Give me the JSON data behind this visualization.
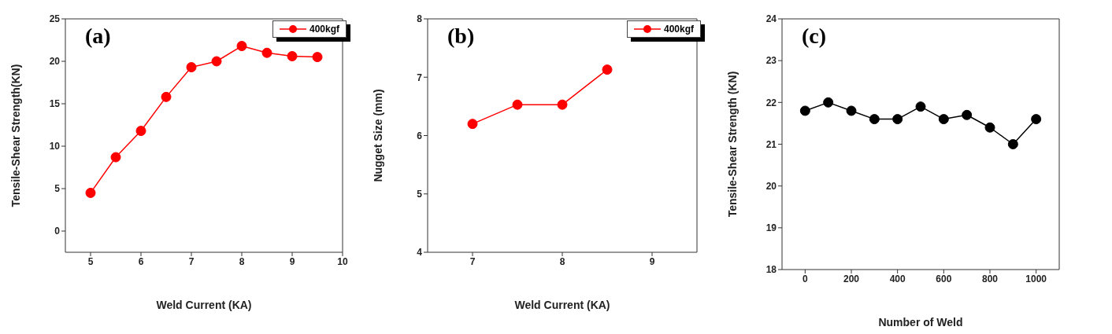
{
  "chart_data": [
    {
      "type": "line",
      "xlabel": "Weld Current (KA)",
      "ylabel": "Tensile-Shear Strength(KN)",
      "annotations": [
        "(a)"
      ],
      "x": [
        5,
        5.5,
        6,
        6.5,
        7,
        7.5,
        8,
        8.5,
        9,
        9.5
      ],
      "xlim": [
        4.5,
        10
      ],
      "xticks": [
        5,
        6,
        7,
        8,
        9,
        10
      ],
      "ylim": [
        -2.5,
        25
      ],
      "yticks": [
        0,
        5,
        10,
        15,
        20,
        25
      ],
      "marker": "circle",
      "legend": "top right",
      "grid": false,
      "series": [
        {
          "name": "400kgf",
          "color": "#ff0000",
          "values": [
            4.5,
            8.7,
            11.8,
            15.8,
            19.3,
            20.0,
            21.8,
            21.0,
            20.6,
            20.5
          ]
        }
      ]
    },
    {
      "type": "line",
      "xlabel": "Weld Current (KA)",
      "ylabel": "Nugget Size (mm)",
      "annotations": [
        "(b)"
      ],
      "x": [
        7,
        7.5,
        8,
        8.5
      ],
      "xlim": [
        6.5,
        9.5
      ],
      "xticks": [
        7,
        8,
        9
      ],
      "ylim": [
        4,
        8
      ],
      "yticks": [
        4,
        5,
        6,
        7,
        8
      ],
      "marker": "circle",
      "legend": "top right",
      "grid": false,
      "series": [
        {
          "name": "400kgf",
          "color": "#ff0000",
          "values": [
            6.2,
            6.53,
            6.53,
            7.13
          ]
        }
      ]
    },
    {
      "type": "line",
      "xlabel": "Number of Weld",
      "ylabel": "Tensile-Shear Strength (KN)",
      "annotations": [
        "(c)"
      ],
      "x": [
        0,
        100,
        200,
        300,
        400,
        500,
        600,
        700,
        800,
        900,
        1000
      ],
      "xlim": [
        -100,
        1100
      ],
      "xticks": [
        0,
        200,
        400,
        600,
        800,
        1000
      ],
      "ylim": [
        18,
        24
      ],
      "yticks": [
        18,
        19,
        20,
        21,
        22,
        23,
        24
      ],
      "marker": "circle",
      "grid": false,
      "series": [
        {
          "color": "#000000",
          "values": [
            21.8,
            22.0,
            21.8,
            21.6,
            21.6,
            21.9,
            21.6,
            21.7,
            21.4,
            21.0,
            21.6
          ]
        }
      ]
    }
  ]
}
